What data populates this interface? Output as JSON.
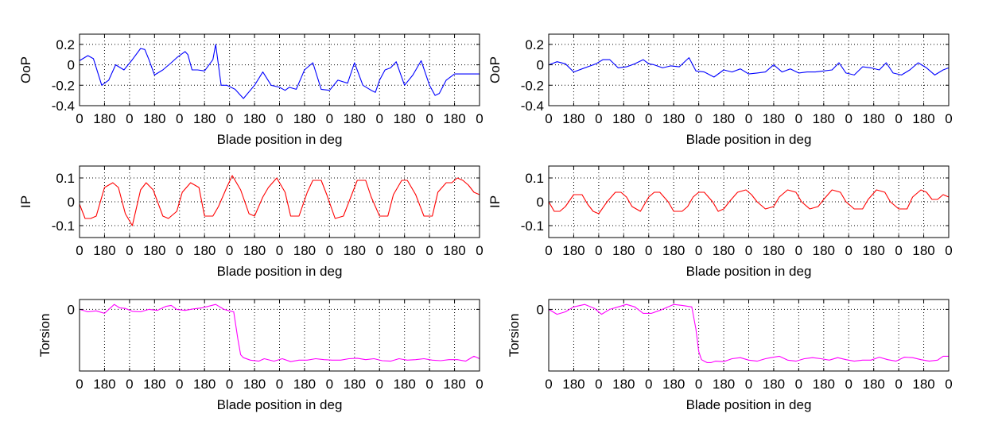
{
  "figure": {
    "background": "#ffffff"
  },
  "chart_data": [
    {
      "type": "line",
      "column": 0,
      "row": 0,
      "ylabel": "OoP",
      "xlabel": "Blade position in deg",
      "ylim": [
        -0.4,
        0.3
      ],
      "yticks": [
        0.2,
        0,
        -0.2,
        -0.4
      ],
      "ytick_labels": [
        "0.2",
        "0",
        "-0.2",
        "-0.4"
      ],
      "xlim": [
        0,
        2880
      ],
      "xticks": [
        0,
        180,
        360,
        540,
        720,
        900,
        1080,
        1260,
        1440,
        1620,
        1800,
        1980,
        2160,
        2340,
        2520,
        2700,
        2880
      ],
      "xtick_labels": [
        "0",
        "180",
        "0",
        "180",
        "0",
        "180",
        "0",
        "180",
        "0",
        "180",
        "0",
        "180",
        "0",
        "180",
        "0",
        "180",
        "0"
      ],
      "grid": true,
      "color": "#0000ff",
      "series": [
        {
          "x": [
            0,
            60,
            100,
            160,
            210,
            260,
            320,
            380,
            440,
            470,
            500,
            540,
            600,
            660,
            700,
            760,
            780,
            810,
            850,
            900,
            960,
            980,
            1020,
            1060,
            1120,
            1180,
            1260,
            1320,
            1380,
            1440,
            1480,
            1510,
            1560,
            1620,
            1680,
            1740,
            1800,
            1860,
            1930,
            1980,
            2040,
            2100,
            2130,
            2160,
            2200,
            2240,
            2280,
            2340,
            2400,
            2460,
            2520,
            2560,
            2590,
            2640,
            2700,
            2760,
            2820,
            2880
          ],
          "y": [
            0.04,
            0.09,
            0.06,
            -0.2,
            -0.15,
            0.0,
            -0.05,
            0.05,
            0.16,
            0.15,
            0.05,
            -0.1,
            -0.05,
            0.02,
            0.07,
            0.13,
            0.1,
            -0.05,
            -0.05,
            -0.06,
            0.05,
            0.2,
            -0.2,
            -0.2,
            -0.24,
            -0.33,
            -0.2,
            -0.07,
            -0.2,
            -0.22,
            -0.25,
            -0.22,
            -0.24,
            -0.05,
            0.02,
            -0.24,
            -0.25,
            -0.15,
            -0.18,
            0.02,
            -0.2,
            -0.25,
            -0.27,
            -0.15,
            -0.05,
            -0.03,
            0.03,
            -0.2,
            -0.1,
            0.04,
            -0.2,
            -0.3,
            -0.28,
            -0.15,
            -0.09,
            -0.09,
            -0.09,
            -0.09
          ]
        }
      ]
    },
    {
      "type": "line",
      "column": 0,
      "row": 1,
      "ylabel": "IP",
      "xlabel": "Blade position in deg",
      "ylim": [
        -0.15,
        0.15
      ],
      "yticks": [
        0.1,
        0,
        -0.1
      ],
      "ytick_labels": [
        "0.1",
        "0",
        "-0.1"
      ],
      "xlim": [
        0,
        2880
      ],
      "xticks": [
        0,
        180,
        360,
        540,
        720,
        900,
        1080,
        1260,
        1440,
        1620,
        1800,
        1980,
        2160,
        2340,
        2520,
        2700,
        2880
      ],
      "xtick_labels": [
        "0",
        "180",
        "0",
        "180",
        "0",
        "180",
        "0",
        "180",
        "0",
        "180",
        "0",
        "180",
        "0",
        "180",
        "0",
        "180",
        "0"
      ],
      "grid": true,
      "color": "#ff0000",
      "series": [
        {
          "x": [
            0,
            40,
            80,
            120,
            180,
            240,
            280,
            330,
            380,
            440,
            480,
            530,
            600,
            640,
            700,
            740,
            800,
            860,
            900,
            960,
            1000,
            1060,
            1100,
            1160,
            1220,
            1260,
            1320,
            1360,
            1420,
            1480,
            1520,
            1580,
            1640,
            1680,
            1740,
            1780,
            1840,
            1900,
            1960,
            2000,
            2060,
            2100,
            2160,
            2220,
            2260,
            2320,
            2360,
            2420,
            2480,
            2540,
            2580,
            2640,
            2680,
            2720,
            2760,
            2800,
            2840,
            2880
          ],
          "y": [
            -0.01,
            -0.07,
            -0.07,
            -0.06,
            0.06,
            0.08,
            0.06,
            -0.05,
            -0.1,
            0.05,
            0.08,
            0.05,
            -0.06,
            -0.07,
            -0.04,
            0.04,
            0.08,
            0.06,
            -0.06,
            -0.06,
            -0.02,
            0.06,
            0.11,
            0.05,
            -0.05,
            -0.06,
            0.02,
            0.06,
            0.1,
            0.04,
            -0.06,
            -0.06,
            0.04,
            0.09,
            0.09,
            0.03,
            -0.07,
            -0.06,
            0.03,
            0.09,
            0.09,
            0.02,
            -0.06,
            -0.06,
            0.03,
            0.09,
            0.09,
            0.03,
            -0.06,
            -0.06,
            0.04,
            0.08,
            0.08,
            0.1,
            0.09,
            0.07,
            0.04,
            0.03
          ]
        }
      ]
    },
    {
      "type": "line",
      "column": 0,
      "row": 2,
      "ylabel": "Torsion",
      "xlabel": "Blade position in deg",
      "ylim": [
        -1.25,
        0.2
      ],
      "yticks": [
        0
      ],
      "ytick_labels": [
        "0"
      ],
      "xlim": [
        0,
        2880
      ],
      "xticks": [
        0,
        180,
        360,
        540,
        720,
        900,
        1080,
        1260,
        1440,
        1620,
        1800,
        1980,
        2160,
        2340,
        2520,
        2700,
        2880
      ],
      "xtick_labels": [
        "0",
        "180",
        "0",
        "180",
        "0",
        "180",
        "0",
        "180",
        "0",
        "180",
        "0",
        "180",
        "0",
        "180",
        "0",
        "180",
        "0"
      ],
      "grid": true,
      "color": "#ff00ff",
      "series": [
        {
          "x": [
            0,
            60,
            120,
            180,
            250,
            290,
            330,
            380,
            440,
            500,
            560,
            620,
            660,
            700,
            760,
            820,
            880,
            980,
            1040,
            1080,
            1110,
            1140,
            1160,
            1180,
            1230,
            1290,
            1330,
            1400,
            1460,
            1520,
            1580,
            1640,
            1700,
            1760,
            1820,
            1880,
            1940,
            2000,
            2060,
            2120,
            2180,
            2240,
            2300,
            2360,
            2420,
            2480,
            2540,
            2600,
            2660,
            2720,
            2780,
            2840,
            2880
          ],
          "y": [
            0,
            -0.05,
            -0.03,
            -0.08,
            0.1,
            0.03,
            0.02,
            -0.04,
            -0.05,
            0.0,
            -0.02,
            0.06,
            0.08,
            0.0,
            -0.02,
            0.01,
            0.03,
            0.1,
            0.0,
            -0.03,
            -0.05,
            -0.6,
            -0.92,
            -0.98,
            -1.03,
            -1.05,
            -1.0,
            -1.05,
            -1.0,
            -1.06,
            -1.03,
            -1.03,
            -1.0,
            -1.02,
            -1.03,
            -1.03,
            -1.0,
            -0.99,
            -1.02,
            -1.0,
            -1.04,
            -1.05,
            -1.0,
            -1.03,
            -1.02,
            -1.0,
            -1.03,
            -1.04,
            -1.02,
            -1.02,
            -1.05,
            -0.95,
            -1.0
          ]
        }
      ]
    },
    {
      "type": "line",
      "column": 1,
      "row": 0,
      "ylabel": "OoP",
      "xlabel": "Blade position in deg",
      "ylim": [
        -0.4,
        0.3
      ],
      "yticks": [
        0.2,
        0,
        -0.2,
        -0.4
      ],
      "ytick_labels": [
        "0.2",
        "0",
        "-0.2",
        "-0.4"
      ],
      "xlim": [
        0,
        2880
      ],
      "xticks": [
        0,
        180,
        360,
        540,
        720,
        900,
        1080,
        1260,
        1440,
        1620,
        1800,
        1980,
        2160,
        2340,
        2520,
        2700,
        2880
      ],
      "xtick_labels": [
        "0",
        "180",
        "0",
        "180",
        "0",
        "180",
        "0",
        "180",
        "0",
        "180",
        "0",
        "180",
        "0",
        "180",
        "0",
        "180",
        "0"
      ],
      "grid": true,
      "color": "#0000ff",
      "series": [
        {
          "x": [
            0,
            60,
            120,
            180,
            240,
            300,
            340,
            390,
            440,
            500,
            560,
            620,
            680,
            720,
            760,
            820,
            880,
            940,
            1010,
            1060,
            1120,
            1190,
            1260,
            1320,
            1380,
            1440,
            1500,
            1560,
            1620,
            1680,
            1740,
            1800,
            1860,
            1920,
            1980,
            2040,
            2090,
            2140,
            2200,
            2260,
            2320,
            2380,
            2430,
            2480,
            2540,
            2600,
            2660,
            2720,
            2780,
            2840,
            2880
          ],
          "y": [
            0.0,
            0.03,
            0.01,
            -0.07,
            -0.04,
            -0.01,
            0.01,
            0.05,
            0.05,
            -0.03,
            -0.02,
            0.01,
            0.05,
            0.01,
            0.0,
            -0.03,
            -0.01,
            -0.02,
            0.07,
            -0.06,
            -0.07,
            -0.12,
            -0.05,
            -0.07,
            -0.04,
            -0.09,
            -0.08,
            -0.07,
            0.0,
            -0.07,
            -0.04,
            -0.08,
            -0.07,
            -0.07,
            -0.06,
            -0.05,
            0.02,
            -0.08,
            -0.1,
            -0.02,
            -0.03,
            -0.05,
            0.02,
            -0.08,
            -0.1,
            -0.05,
            0.02,
            -0.03,
            -0.1,
            -0.05,
            -0.03
          ]
        }
      ]
    },
    {
      "type": "line",
      "column": 1,
      "row": 1,
      "ylabel": "IP",
      "xlabel": "Blade position in deg",
      "ylim": [
        -0.15,
        0.15
      ],
      "yticks": [
        0.1,
        0,
        -0.1
      ],
      "ytick_labels": [
        "0.1",
        "0",
        "-0.1"
      ],
      "xlim": [
        0,
        2880
      ],
      "xticks": [
        0,
        180,
        360,
        540,
        720,
        900,
        1080,
        1260,
        1440,
        1620,
        1800,
        1980,
        2160,
        2340,
        2520,
        2700,
        2880
      ],
      "xtick_labels": [
        "0",
        "180",
        "0",
        "180",
        "0",
        "180",
        "0",
        "180",
        "0",
        "180",
        "0",
        "180",
        "0",
        "180",
        "0",
        "180",
        "0"
      ],
      "grid": true,
      "color": "#ff0000",
      "series": [
        {
          "x": [
            0,
            40,
            80,
            120,
            180,
            240,
            280,
            320,
            360,
            420,
            480,
            520,
            560,
            600,
            660,
            720,
            760,
            800,
            860,
            900,
            960,
            1000,
            1040,
            1080,
            1120,
            1180,
            1220,
            1260,
            1300,
            1360,
            1420,
            1460,
            1500,
            1560,
            1620,
            1660,
            1720,
            1780,
            1820,
            1880,
            1940,
            1980,
            2040,
            2100,
            2140,
            2200,
            2260,
            2300,
            2360,
            2420,
            2460,
            2520,
            2580,
            2620,
            2680,
            2720,
            2760,
            2800,
            2840,
            2880
          ],
          "y": [
            0.0,
            -0.04,
            -0.04,
            -0.02,
            0.03,
            0.03,
            -0.01,
            -0.04,
            -0.05,
            0.0,
            0.04,
            0.04,
            0.02,
            -0.02,
            -0.04,
            0.02,
            0.04,
            0.04,
            0.0,
            -0.04,
            -0.04,
            -0.02,
            0.02,
            0.04,
            0.04,
            0.0,
            -0.04,
            -0.03,
            0.0,
            0.04,
            0.05,
            0.03,
            0.0,
            -0.03,
            -0.02,
            0.02,
            0.05,
            0.04,
            0.0,
            -0.03,
            -0.02,
            0.01,
            0.05,
            0.04,
            0.0,
            -0.03,
            -0.03,
            0.01,
            0.05,
            0.04,
            0.0,
            -0.03,
            -0.03,
            0.02,
            0.05,
            0.04,
            0.01,
            0.01,
            0.03,
            0.02
          ]
        }
      ]
    },
    {
      "type": "line",
      "column": 1,
      "row": 2,
      "ylabel": "Torsion",
      "xlabel": "Blade position in deg",
      "ylim": [
        -1.25,
        0.2
      ],
      "yticks": [
        0
      ],
      "ytick_labels": [
        "0"
      ],
      "xlim": [
        0,
        2880
      ],
      "xticks": [
        0,
        180,
        360,
        540,
        720,
        900,
        1080,
        1260,
        1440,
        1620,
        1800,
        1980,
        2160,
        2340,
        2520,
        2700,
        2880
      ],
      "xtick_labels": [
        "0",
        "180",
        "0",
        "180",
        "0",
        "180",
        "0",
        "180",
        "0",
        "180",
        "0",
        "180",
        "0",
        "180",
        "0",
        "180",
        "0"
      ],
      "grid": true,
      "color": "#ff00ff",
      "series": [
        {
          "x": [
            0,
            60,
            120,
            180,
            260,
            330,
            380,
            440,
            500,
            560,
            620,
            680,
            740,
            800,
            860,
            900,
            960,
            1030,
            1060,
            1080,
            1100,
            1120,
            1140,
            1170,
            1200,
            1260,
            1320,
            1380,
            1440,
            1500,
            1560,
            1600,
            1660,
            1720,
            1780,
            1840,
            1900,
            1960,
            2020,
            2080,
            2140,
            2200,
            2260,
            2320,
            2380,
            2440,
            2500,
            2560,
            2620,
            2680,
            2740,
            2800,
            2840,
            2880
          ],
          "y": [
            0,
            -0.1,
            -0.05,
            0.05,
            0.1,
            0.02,
            -0.1,
            0.0,
            0.05,
            0.1,
            0.05,
            -0.08,
            -0.08,
            -0.02,
            0.05,
            0.1,
            0.08,
            0.05,
            -0.4,
            -0.85,
            -1.02,
            -1.05,
            -1.08,
            -1.08,
            -1.05,
            -1.06,
            -1.0,
            -0.98,
            -1.03,
            -1.05,
            -1.0,
            -0.98,
            -0.95,
            -1.03,
            -1.05,
            -1.0,
            -0.98,
            -1.0,
            -1.03,
            -0.98,
            -1.02,
            -1.05,
            -1.03,
            -1.03,
            -0.97,
            -1.02,
            -1.05,
            -0.97,
            -0.98,
            -1.02,
            -1.05,
            -1.03,
            -0.95,
            -0.95
          ]
        }
      ]
    }
  ]
}
